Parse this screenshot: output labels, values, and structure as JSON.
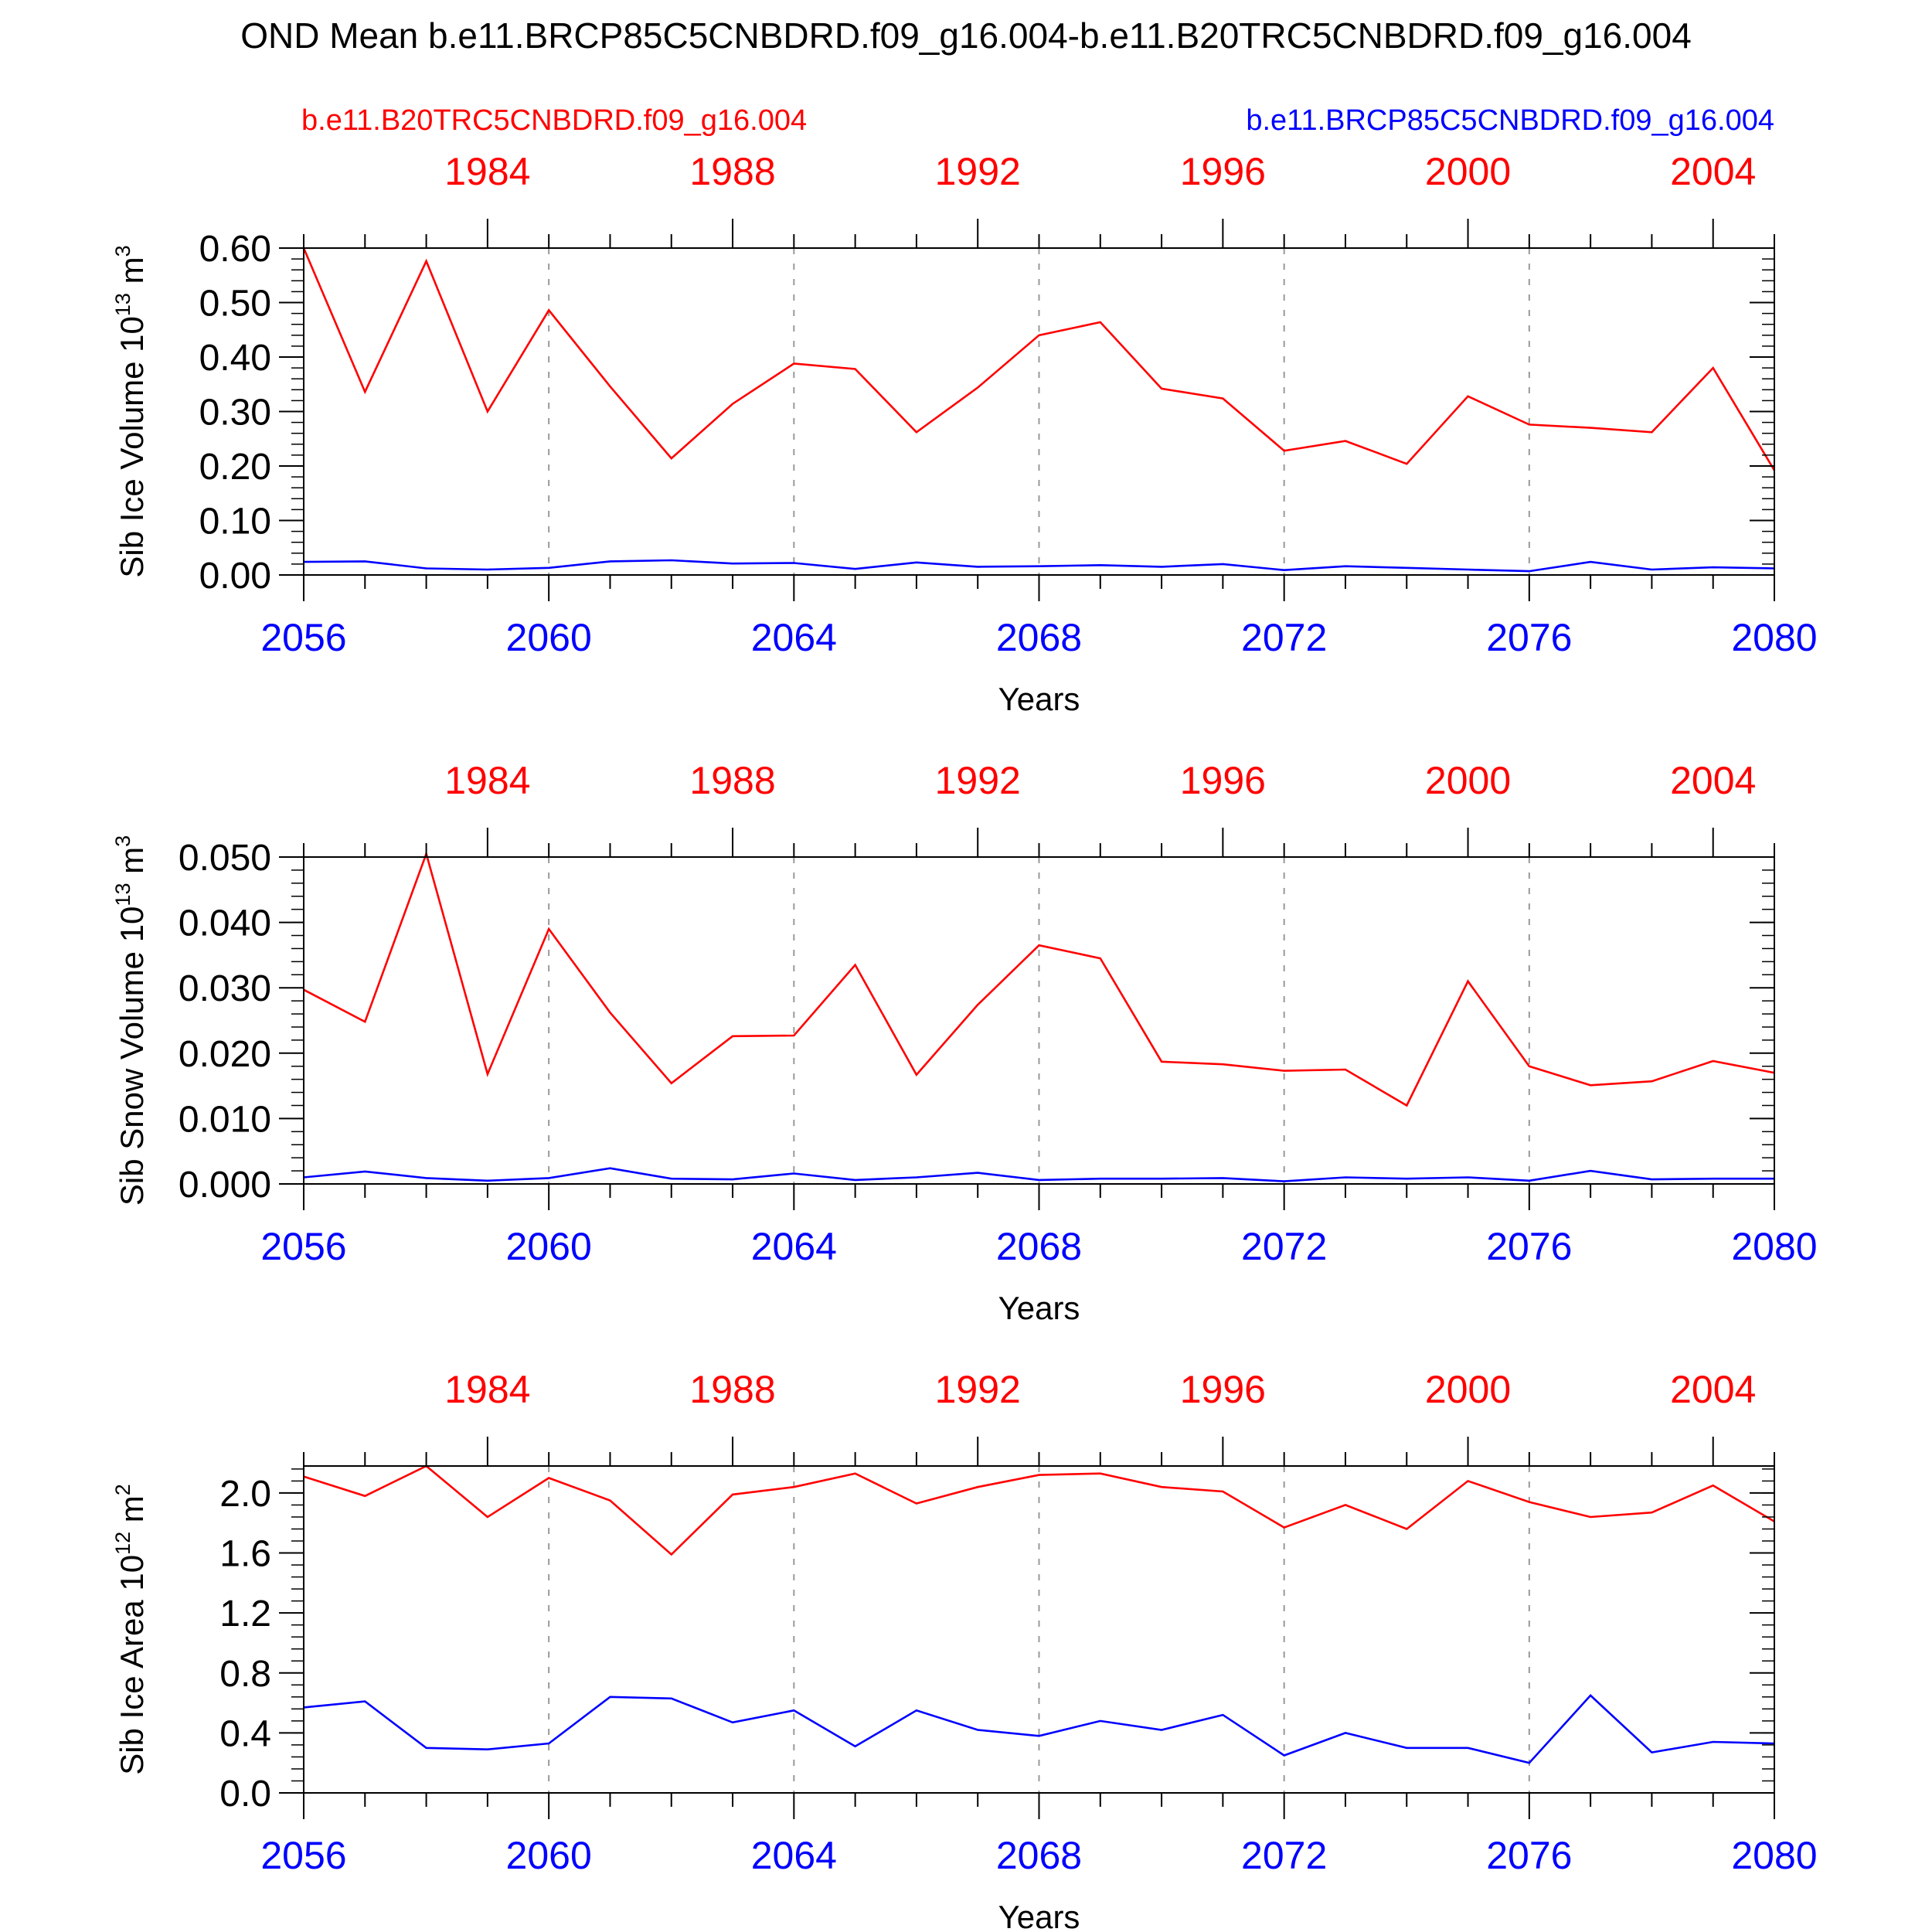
{
  "title": "OND Mean b.e11.BRCP85C5CNBDRD.f09_g16.004-b.e11.B20TRC5CNBDRD.f09_g16.004",
  "legend": {
    "left_label": "b.e11.B20TRC5CNBDRD.f09_g16.004",
    "right_label": "b.e11.BRCP85C5CNBDRD.f09_g16.004"
  },
  "colors": {
    "hist": "#ff0000",
    "rcp": "#0000ff",
    "axis": "#000000",
    "grid": "#999999"
  },
  "chart_data": [
    {
      "type": "line",
      "ylabel_main": "Sib Ice Volume 10",
      "ylabel_exp": "13",
      "ylabel_unit": " m",
      "ylabel_unit_exp": "3",
      "xlabel": "Years",
      "x": [
        2056,
        2057,
        2058,
        2059,
        2060,
        2061,
        2062,
        2063,
        2064,
        2065,
        2066,
        2067,
        2068,
        2069,
        2070,
        2071,
        2072,
        2073,
        2074,
        2075,
        2076,
        2077,
        2078,
        2079,
        2080
      ],
      "xlim": [
        2056,
        2080
      ],
      "ylim": [
        0,
        0.6
      ],
      "yticks": [
        0,
        0.1,
        0.2,
        0.3,
        0.4,
        0.5,
        0.6
      ],
      "ytick_labels": [
        "0.00",
        "0.10",
        "0.20",
        "0.30",
        "0.40",
        "0.50",
        "0.60"
      ],
      "yminor_step": 0.02,
      "bottom_ticks": [
        2056,
        2060,
        2064,
        2068,
        2072,
        2076,
        2080
      ],
      "bottom_tick_labels": [
        "2056",
        "2060",
        "2064",
        "2068",
        "2072",
        "2076",
        "2080"
      ],
      "top_ticks_at": [
        2059,
        2063,
        2067,
        2071,
        2075,
        2079
      ],
      "top_tick_labels": [
        "1984",
        "1988",
        "1992",
        "1996",
        "2000",
        "2004"
      ],
      "series": [
        {
          "name": "b.e11.B20TRC5CNBDRD.f09_g16.004",
          "color": "#ff0000",
          "values": [
            0.6,
            0.336,
            0.576,
            0.3,
            0.486,
            0.346,
            0.214,
            0.314,
            0.388,
            0.378,
            0.262,
            0.344,
            0.44,
            0.464,
            0.342,
            0.324,
            0.228,
            0.246,
            0.204,
            0.328,
            0.276,
            0.27,
            0.262,
            0.38,
            0.192
          ]
        },
        {
          "name": "b.e11.BRCP85C5CNBDRD.f09_g16.004",
          "color": "#0000ff",
          "values": [
            0.024,
            0.025,
            0.012,
            0.01,
            0.013,
            0.025,
            0.027,
            0.021,
            0.022,
            0.011,
            0.023,
            0.015,
            0.016,
            0.018,
            0.015,
            0.02,
            0.009,
            0.016,
            0.013,
            0.01,
            0.007,
            0.024,
            0.01,
            0.014,
            0.012
          ]
        }
      ]
    },
    {
      "type": "line",
      "ylabel_main": "Sib Snow Volume 10",
      "ylabel_exp": "13",
      "ylabel_unit": " m",
      "ylabel_unit_exp": "3",
      "xlabel": "Years",
      "x": [
        2056,
        2057,
        2058,
        2059,
        2060,
        2061,
        2062,
        2063,
        2064,
        2065,
        2066,
        2067,
        2068,
        2069,
        2070,
        2071,
        2072,
        2073,
        2074,
        2075,
        2076,
        2077,
        2078,
        2079,
        2080
      ],
      "xlim": [
        2056,
        2080
      ],
      "ylim": [
        0,
        0.05
      ],
      "yticks": [
        0,
        0.01,
        0.02,
        0.03,
        0.04,
        0.05
      ],
      "ytick_labels": [
        "0.000",
        "0.010",
        "0.020",
        "0.030",
        "0.040",
        "0.050"
      ],
      "yminor_step": 0.002,
      "bottom_ticks": [
        2056,
        2060,
        2064,
        2068,
        2072,
        2076,
        2080
      ],
      "bottom_tick_labels": [
        "2056",
        "2060",
        "2064",
        "2068",
        "2072",
        "2076",
        "2080"
      ],
      "top_ticks_at": [
        2059,
        2063,
        2067,
        2071,
        2075,
        2079
      ],
      "top_tick_labels": [
        "1984",
        "1988",
        "1992",
        "1996",
        "2000",
        "2004"
      ],
      "series": [
        {
          "name": "b.e11.B20TRC5CNBDRD.f09_g16.004",
          "color": "#ff0000",
          "values": [
            0.0297,
            0.0248,
            0.0505,
            0.0168,
            0.039,
            0.0262,
            0.0154,
            0.0226,
            0.0227,
            0.0335,
            0.0167,
            0.0274,
            0.0365,
            0.0345,
            0.0187,
            0.0183,
            0.0173,
            0.0175,
            0.012,
            0.031,
            0.018,
            0.0151,
            0.0157,
            0.0188,
            0.017
          ]
        },
        {
          "name": "b.e11.BRCP85C5CNBDRD.f09_g16.004",
          "color": "#0000ff",
          "values": [
            0.001,
            0.0019,
            0.0009,
            0.0005,
            0.0009,
            0.0024,
            0.0008,
            0.0007,
            0.0016,
            0.0006,
            0.001,
            0.0017,
            0.0006,
            0.0008,
            0.0008,
            0.0009,
            0.0004,
            0.001,
            0.0008,
            0.001,
            0.0005,
            0.002,
            0.0007,
            0.0008,
            0.0008
          ]
        }
      ]
    },
    {
      "type": "line",
      "ylabel_main": "Sib Ice Area 10",
      "ylabel_exp": "12",
      "ylabel_unit": " m",
      "ylabel_unit_exp": "2",
      "xlabel": "Years",
      "x": [
        2056,
        2057,
        2058,
        2059,
        2060,
        2061,
        2062,
        2063,
        2064,
        2065,
        2066,
        2067,
        2068,
        2069,
        2070,
        2071,
        2072,
        2073,
        2074,
        2075,
        2076,
        2077,
        2078,
        2079,
        2080
      ],
      "xlim": [
        2056,
        2080
      ],
      "ylim": [
        0,
        2.18
      ],
      "yticks": [
        0,
        0.4,
        0.8,
        1.2,
        1.6,
        2.0
      ],
      "ytick_labels": [
        "0.0",
        "0.4",
        "0.8",
        "1.2",
        "1.6",
        "2.0"
      ],
      "yminor_step": 0.08,
      "bottom_ticks": [
        2056,
        2060,
        2064,
        2068,
        2072,
        2076,
        2080
      ],
      "bottom_tick_labels": [
        "2056",
        "2060",
        "2064",
        "2068",
        "2072",
        "2076",
        "2080"
      ],
      "top_ticks_at": [
        2059,
        2063,
        2067,
        2071,
        2075,
        2079
      ],
      "top_tick_labels": [
        "1984",
        "1988",
        "1992",
        "1996",
        "2000",
        "2004"
      ],
      "series": [
        {
          "name": "b.e11.B20TRC5CNBDRD.f09_g16.004",
          "color": "#ff0000",
          "values": [
            2.11,
            1.98,
            2.18,
            1.84,
            2.1,
            1.95,
            1.59,
            1.99,
            2.04,
            2.13,
            1.93,
            2.04,
            2.12,
            2.13,
            2.04,
            2.01,
            1.77,
            1.92,
            1.76,
            2.08,
            1.94,
            1.84,
            1.87,
            2.05,
            1.81
          ]
        },
        {
          "name": "b.e11.BRCP85C5CNBDRD.f09_g16.004",
          "color": "#0000ff",
          "values": [
            0.57,
            0.61,
            0.3,
            0.29,
            0.33,
            0.64,
            0.63,
            0.47,
            0.55,
            0.31,
            0.55,
            0.42,
            0.38,
            0.48,
            0.42,
            0.52,
            0.25,
            0.4,
            0.3,
            0.3,
            0.2,
            0.65,
            0.27,
            0.34,
            0.33
          ]
        }
      ]
    }
  ]
}
